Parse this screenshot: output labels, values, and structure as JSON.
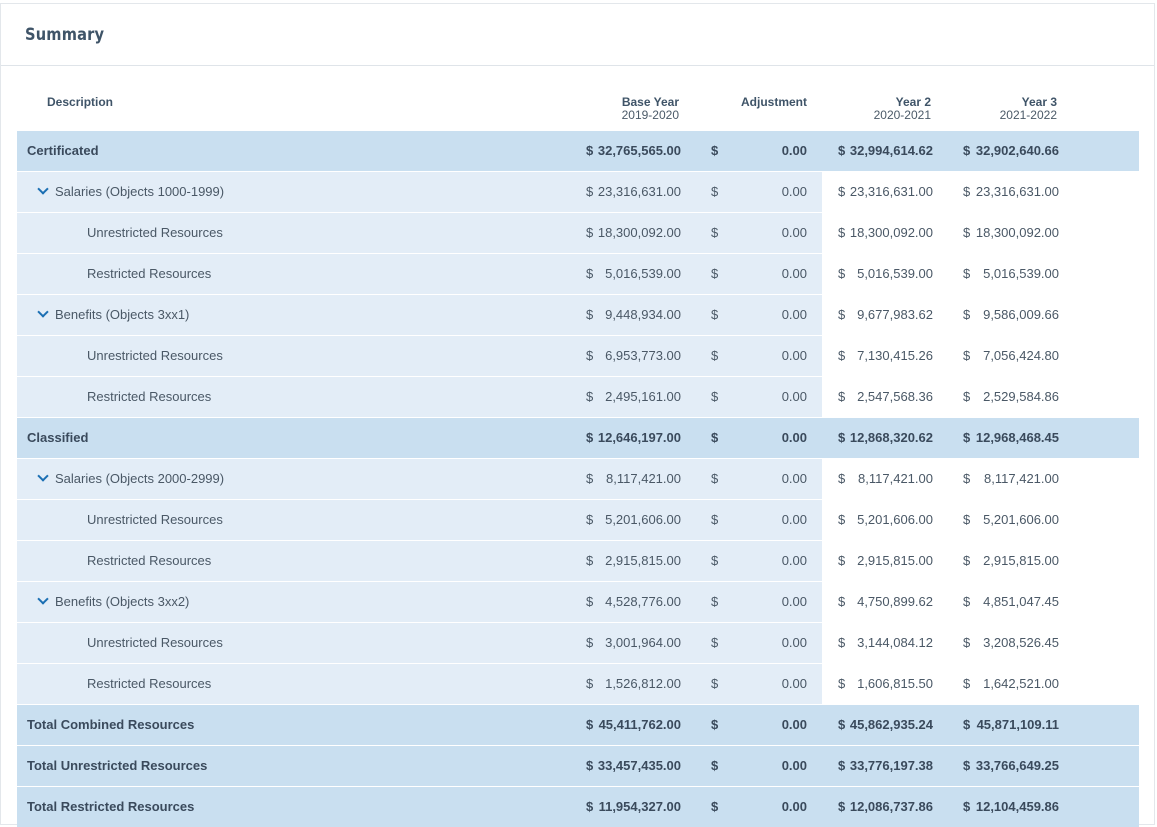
{
  "title": "Summary",
  "columns": {
    "description": "Description",
    "base": "Base Year",
    "base_sub": "2019-2020",
    "adjustment": "Adjustment",
    "year2": "Year 2",
    "year2_sub": "2020-2021",
    "year3": "Year 3",
    "year3_sub": "2021-2022"
  },
  "currency": "$",
  "rows": [
    {
      "type": "total",
      "label": "Certificated",
      "base": "32,765,565.00",
      "adj": "0.00",
      "y2": "32,994,614.62",
      "y3": "32,902,640.66"
    },
    {
      "type": "group",
      "label": "Salaries (Objects 1000-1999)",
      "base": "23,316,631.00",
      "adj": "0.00",
      "y2": "23,316,631.00",
      "y3": "23,316,631.00"
    },
    {
      "type": "sub",
      "label": "Unrestricted Resources",
      "base": "18,300,092.00",
      "adj": "0.00",
      "y2": "18,300,092.00",
      "y3": "18,300,092.00"
    },
    {
      "type": "sub",
      "label": "Restricted Resources",
      "base": "5,016,539.00",
      "adj": "0.00",
      "y2": "5,016,539.00",
      "y3": "5,016,539.00"
    },
    {
      "type": "group",
      "label": "Benefits (Objects 3xx1)",
      "base": "9,448,934.00",
      "adj": "0.00",
      "y2": "9,677,983.62",
      "y3": "9,586,009.66"
    },
    {
      "type": "sub",
      "label": "Unrestricted Resources",
      "base": "6,953,773.00",
      "adj": "0.00",
      "y2": "7,130,415.26",
      "y3": "7,056,424.80"
    },
    {
      "type": "sub",
      "label": "Restricted Resources",
      "base": "2,495,161.00",
      "adj": "0.00",
      "y2": "2,547,568.36",
      "y3": "2,529,584.86"
    },
    {
      "type": "total",
      "label": "Classified",
      "base": "12,646,197.00",
      "adj": "0.00",
      "y2": "12,868,320.62",
      "y3": "12,968,468.45"
    },
    {
      "type": "group",
      "label": "Salaries (Objects 2000-2999)",
      "base": "8,117,421.00",
      "adj": "0.00",
      "y2": "8,117,421.00",
      "y3": "8,117,421.00"
    },
    {
      "type": "sub",
      "label": "Unrestricted Resources",
      "base": "5,201,606.00",
      "adj": "0.00",
      "y2": "5,201,606.00",
      "y3": "5,201,606.00"
    },
    {
      "type": "sub",
      "label": "Restricted Resources",
      "base": "2,915,815.00",
      "adj": "0.00",
      "y2": "2,915,815.00",
      "y3": "2,915,815.00"
    },
    {
      "type": "group",
      "label": "Benefits (Objects 3xx2)",
      "base": "4,528,776.00",
      "adj": "0.00",
      "y2": "4,750,899.62",
      "y3": "4,851,047.45"
    },
    {
      "type": "sub",
      "label": "Unrestricted Resources",
      "base": "3,001,964.00",
      "adj": "0.00",
      "y2": "3,144,084.12",
      "y3": "3,208,526.45"
    },
    {
      "type": "sub",
      "label": "Restricted Resources",
      "base": "1,526,812.00",
      "adj": "0.00",
      "y2": "1,606,815.50",
      "y3": "1,642,521.00"
    },
    {
      "type": "total",
      "label": "Total Combined Resources",
      "base": "45,411,762.00",
      "adj": "0.00",
      "y2": "45,862,935.24",
      "y3": "45,871,109.11"
    },
    {
      "type": "total",
      "label": "Total Unrestricted Resources",
      "base": "33,457,435.00",
      "adj": "0.00",
      "y2": "33,776,197.38",
      "y3": "33,766,649.25"
    },
    {
      "type": "total",
      "label": "Total Restricted Resources",
      "base": "11,954,327.00",
      "adj": "0.00",
      "y2": "12,086,737.86",
      "y3": "12,104,459.86"
    }
  ]
}
